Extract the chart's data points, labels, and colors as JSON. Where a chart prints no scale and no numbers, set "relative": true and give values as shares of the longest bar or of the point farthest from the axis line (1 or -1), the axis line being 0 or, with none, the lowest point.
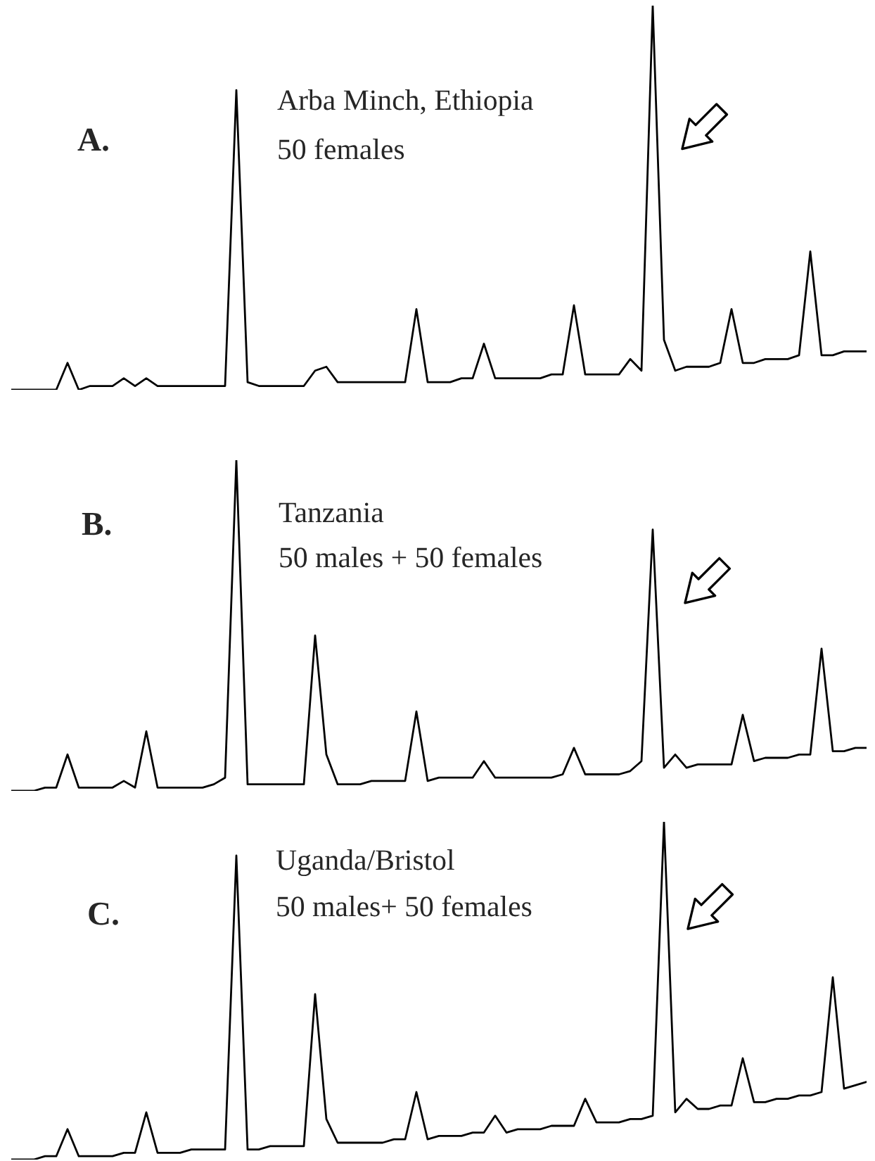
{
  "chart_data": [
    {
      "type": "line",
      "relative": true,
      "annotations": [
        "A.",
        "Arba Minch, Ethiopia",
        "50 females"
      ],
      "categories": [
        null,
        null,
        null,
        null,
        null,
        null,
        null,
        null,
        null,
        null,
        null,
        null,
        null,
        null,
        null,
        null,
        null,
        null,
        null,
        null,
        null,
        null,
        null,
        null,
        null,
        null,
        null,
        null,
        null,
        null,
        null,
        null,
        null,
        null,
        null,
        null,
        null,
        null,
        null,
        null,
        null,
        null,
        null,
        null,
        null,
        null,
        null,
        null,
        null,
        null,
        null,
        null,
        null,
        null,
        null,
        null,
        null,
        null,
        null,
        null,
        null,
        null,
        null,
        null,
        null,
        null,
        null,
        null,
        null,
        null,
        null,
        null,
        null,
        null,
        null,
        null,
        null
      ],
      "series": [
        {
          "color": "#000000",
          "values": [
            0,
            0,
            0,
            0,
            0,
            0.07,
            0,
            0.01,
            0.01,
            0.01,
            0.03,
            0.01,
            0.03,
            0.01,
            0.01,
            0.01,
            0.01,
            0.01,
            0.01,
            0.01,
            0.78,
            0.02,
            0.01,
            0.01,
            0.01,
            0.01,
            0.01,
            0.05,
            0.06,
            0.02,
            0.02,
            0.02,
            0.02,
            0.02,
            0.02,
            0.02,
            0.21,
            0.02,
            0.02,
            0.02,
            0.03,
            0.03,
            0.12,
            0.03,
            0.03,
            0.03,
            0.03,
            0.03,
            0.04,
            0.04,
            0.22,
            0.04,
            0.04,
            0.04,
            0.04,
            0.08,
            0.05,
            1,
            0.13,
            0.05,
            0.06,
            0.06,
            0.06,
            0.07,
            0.21,
            0.07,
            0.07,
            0.08,
            0.08,
            0.08,
            0.09,
            0.36,
            0.09,
            0.09,
            0.1,
            0.1,
            0.1
          ]
        }
      ]
    },
    {
      "type": "line",
      "relative": true,
      "annotations": [
        "B.",
        "Tanzania",
        "50 males + 50 females"
      ],
      "categories": [
        null,
        null,
        null,
        null,
        null,
        null,
        null,
        null,
        null,
        null,
        null,
        null,
        null,
        null,
        null,
        null,
        null,
        null,
        null,
        null,
        null,
        null,
        null,
        null,
        null,
        null,
        null,
        null,
        null,
        null,
        null,
        null,
        null,
        null,
        null,
        null,
        null,
        null,
        null,
        null,
        null,
        null,
        null,
        null,
        null,
        null,
        null,
        null,
        null,
        null,
        null,
        null,
        null,
        null,
        null,
        null,
        null,
        null,
        null,
        null,
        null,
        null,
        null,
        null,
        null,
        null,
        null,
        null,
        null,
        null,
        null,
        null,
        null,
        null,
        null,
        null,
        null
      ],
      "series": [
        {
          "color": "#000000",
          "values": [
            0,
            0,
            0,
            0.01,
            0.01,
            0.11,
            0.01,
            0.01,
            0.01,
            0.01,
            0.03,
            0.01,
            0.18,
            0.01,
            0.01,
            0.01,
            0.01,
            0.01,
            0.02,
            0.04,
            1,
            0.02,
            0.02,
            0.02,
            0.02,
            0.02,
            0.02,
            0.47,
            0.11,
            0.02,
            0.02,
            0.02,
            0.03,
            0.03,
            0.03,
            0.03,
            0.24,
            0.03,
            0.04,
            0.04,
            0.04,
            0.04,
            0.09,
            0.04,
            0.04,
            0.04,
            0.04,
            0.04,
            0.04,
            0.05,
            0.13,
            0.05,
            0.05,
            0.05,
            0.05,
            0.06,
            0.09,
            0.79,
            0.07,
            0.11,
            0.07,
            0.08,
            0.08,
            0.08,
            0.08,
            0.23,
            0.09,
            0.1,
            0.1,
            0.1,
            0.11,
            0.11,
            0.43,
            0.12,
            0.12,
            0.13,
            0.13
          ]
        }
      ]
    },
    {
      "type": "line",
      "relative": true,
      "annotations": [
        "C.",
        "Uganda/Bristol",
        "50 males+ 50 females"
      ],
      "categories": [
        null,
        null,
        null,
        null,
        null,
        null,
        null,
        null,
        null,
        null,
        null,
        null,
        null,
        null,
        null,
        null,
        null,
        null,
        null,
        null,
        null,
        null,
        null,
        null,
        null,
        null,
        null,
        null,
        null,
        null,
        null,
        null,
        null,
        null,
        null,
        null,
        null,
        null,
        null,
        null,
        null,
        null,
        null,
        null,
        null,
        null,
        null,
        null,
        null,
        null,
        null,
        null,
        null,
        null,
        null,
        null,
        null,
        null,
        null,
        null,
        null,
        null,
        null,
        null,
        null,
        null,
        null,
        null,
        null,
        null,
        null,
        null,
        null,
        null,
        null,
        null,
        null
      ],
      "series": [
        {
          "color": "#000000",
          "values": [
            0,
            0,
            0,
            0.01,
            0.01,
            0.09,
            0.01,
            0.01,
            0.01,
            0.01,
            0.02,
            0.02,
            0.14,
            0.02,
            0.02,
            0.02,
            0.03,
            0.03,
            0.03,
            0.03,
            0.9,
            0.03,
            0.03,
            0.04,
            0.04,
            0.04,
            0.04,
            0.49,
            0.12,
            0.05,
            0.05,
            0.05,
            0.05,
            0.05,
            0.06,
            0.06,
            0.2,
            0.06,
            0.07,
            0.07,
            0.07,
            0.08,
            0.08,
            0.13,
            0.08,
            0.09,
            0.09,
            0.09,
            0.1,
            0.1,
            0.1,
            0.18,
            0.11,
            0.11,
            0.11,
            0.12,
            0.12,
            0.13,
            1,
            0.14,
            0.18,
            0.15,
            0.15,
            0.16,
            0.16,
            0.3,
            0.17,
            0.17,
            0.18,
            0.18,
            0.19,
            0.19,
            0.2,
            0.54,
            0.21,
            0.22,
            0.23
          ]
        }
      ]
    }
  ]
}
